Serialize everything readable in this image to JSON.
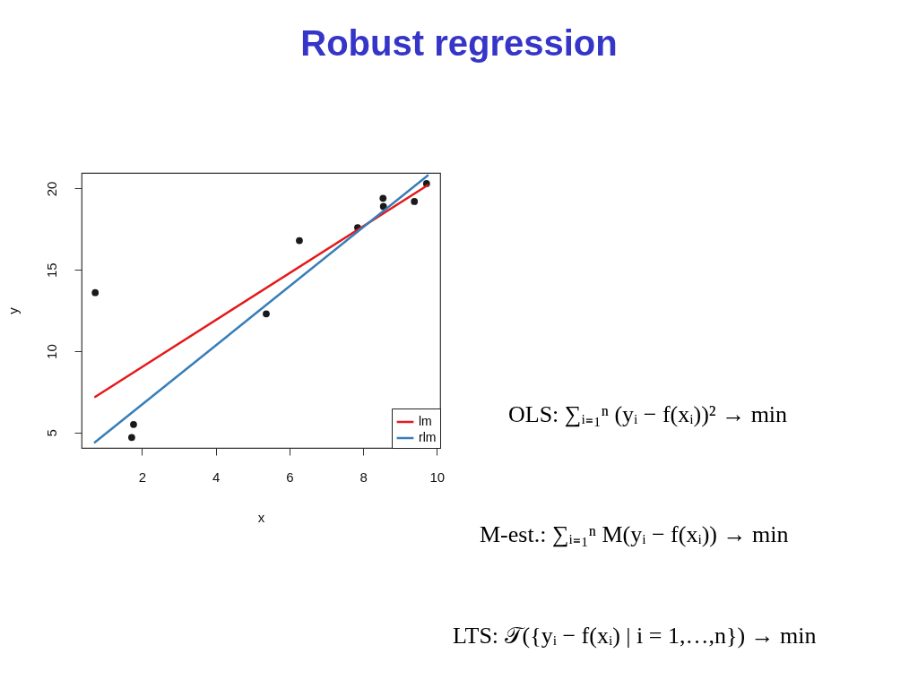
{
  "chart_data": {
    "type": "scatter",
    "title": "Robust regression",
    "xlabel": "x",
    "ylabel": "y",
    "xlim": [
      0.36,
      10.09
    ],
    "ylim": [
      4.06,
      20.96
    ],
    "xticks": [
      2,
      4,
      6,
      8,
      10
    ],
    "yticks": [
      5,
      10,
      15,
      20
    ],
    "legend": "bottom right",
    "series": [
      {
        "color": "#1a1a1a",
        "marker": "circle",
        "x": [
          0.73,
          1.72,
          1.77,
          5.37,
          6.27,
          7.85,
          8.54,
          8.55,
          9.39,
          9.72
        ],
        "values": [
          13.6,
          4.7,
          5.5,
          12.3,
          16.8,
          17.6,
          19.4,
          18.9,
          19.2,
          20.3
        ]
      },
      {
        "type": "line",
        "name": "lm",
        "color": "#e41a1c",
        "x": [
          0.73,
          9.75
        ],
        "values": [
          7.2,
          20.2
        ]
      },
      {
        "type": "line",
        "name": "rlm",
        "color": "#377eb8",
        "x": [
          0.72,
          9.75
        ],
        "values": [
          4.4,
          20.8
        ]
      }
    ],
    "annotations": [
      "OLS: ∑ᵢ₌₁ⁿ (yᵢ − f(xᵢ))² → min",
      "M-est.: ∑ᵢ₌₁ⁿ M(yᵢ − f(xᵢ)) → min",
      "LTS: 𝒯({yᵢ − f(xᵢ) | i = 1,…,n}) → min"
    ]
  }
}
